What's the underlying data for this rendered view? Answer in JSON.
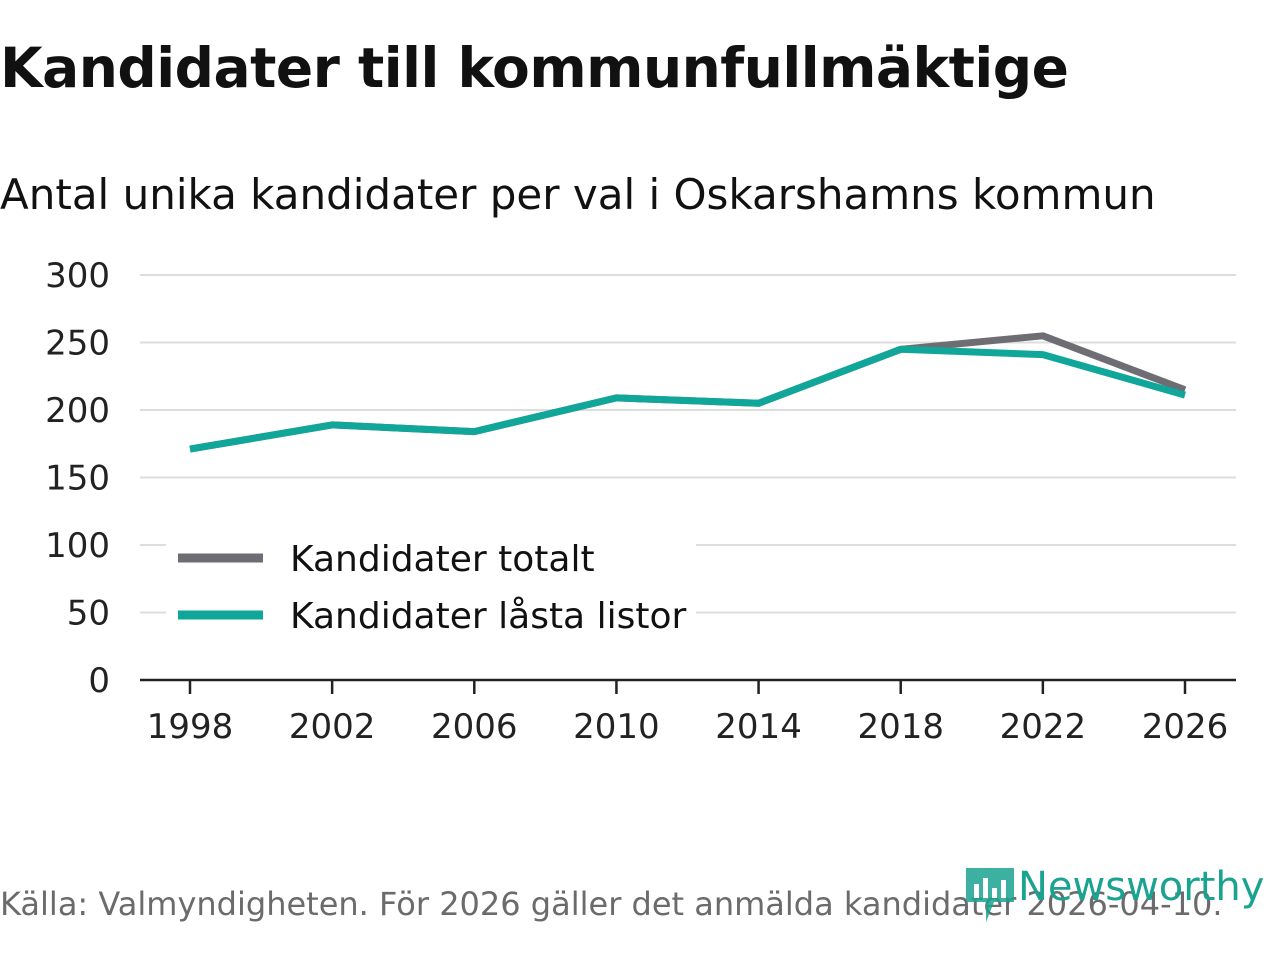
{
  "header": {
    "title": "Kandidater till kommunfullmäktige",
    "subtitle": "Antal unika kandidater per val i Oskarshamns kommun"
  },
  "footer": {
    "source": "Källa: Valmyndigheten. För 2026 gäller det anmälda kandidater 2026-04-10.",
    "logo_text": "Newsworthy"
  },
  "colors": {
    "total": "#6e6d73",
    "locked": "#10a699",
    "grid": "#dddddd",
    "axis": "#222222",
    "brand": "#1aa391"
  },
  "chart_data": {
    "type": "line",
    "title": "Kandidater till kommunfullmäktige",
    "subtitle": "Antal unika kandidater per val i Oskarshamns kommun",
    "xlabel": "",
    "ylabel": "",
    "x": [
      1998,
      2002,
      2006,
      2010,
      2014,
      2018,
      2022,
      2026
    ],
    "x_tick_labels": [
      "1998",
      "2002",
      "2006",
      "2010",
      "2014",
      "2018",
      "2022",
      "2026"
    ],
    "y_ticks": [
      0,
      50,
      100,
      150,
      200,
      250,
      300
    ],
    "y_tick_labels": [
      "0",
      "50",
      "100",
      "150",
      "200",
      "250",
      "300"
    ],
    "ylim": [
      0,
      300
    ],
    "grid": true,
    "legend_position": "lower-left",
    "series": [
      {
        "name": "Kandidater totalt",
        "color_key": "total",
        "values": [
          171,
          189,
          184,
          209,
          205,
          245,
          255,
          215
        ]
      },
      {
        "name": "Kandidater låsta listor",
        "color_key": "locked",
        "values": [
          171,
          189,
          184,
          209,
          205,
          245,
          241,
          211
        ]
      }
    ]
  }
}
